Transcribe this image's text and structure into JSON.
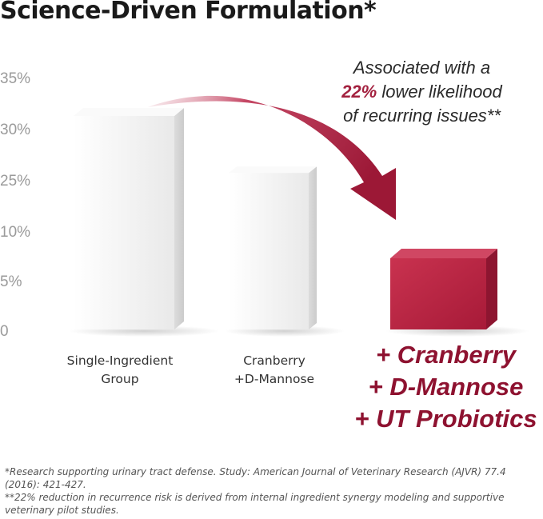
{
  "title": "Science-Driven Formulation*",
  "chart_data": {
    "type": "bar",
    "yticks": [
      "35%",
      "30%",
      "25%",
      "10%",
      "5%",
      "0"
    ],
    "categories": [
      "Single-Ingredient Group",
      "Cranberry +D-Mannose",
      "+ Cranberry + D-Mannose + UT Probiotics"
    ],
    "values": [
      30,
      22,
      10
    ],
    "highlight_index": 2,
    "colors": {
      "bar": "#f2f2f2",
      "highlight": "#b8213f",
      "arrow": "#9c1836"
    }
  },
  "annotation": {
    "line1": "Associated with a",
    "highlight": "22%",
    "line2_rest": " lower likelihood",
    "line3": "of recurring issues**"
  },
  "category_labels": {
    "single_line1": "Single-Ingredient",
    "single_line2": "Group",
    "cm_line1": "Cranberry",
    "cm_line2": "+D-Mannose",
    "hl_line1": "+ Cranberry",
    "hl_line2": "+ D-Mannose",
    "hl_line3": "+ UT Probiotics"
  },
  "footnotes": {
    "line1": "*Research supporting urinary tract defense. Study: American Journal of Veterinary Research (AJVR) 77.4 (2016): 421-427.",
    "line2": "**22% reduction in recurrence risk is derived from internal ingredient synergy modeling and supportive veterinary pilot studies."
  }
}
